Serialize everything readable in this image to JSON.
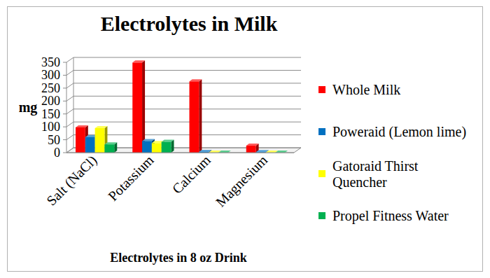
{
  "chart_data": {
    "type": "bar",
    "title": "Electrolytes in Milk",
    "x_label": "Electrolytes in 8 oz Drink",
    "y_label": "mg",
    "categories": [
      "Salt (NaCl)",
      "Potassium",
      "Calcium",
      "Magnesium"
    ],
    "series": [
      {
        "name": "Whole Milk",
        "color": "#ff0000",
        "values": [
          98,
          349,
          276,
          27
        ]
      },
      {
        "name": "Poweraid (Lemon lime)",
        "color": "#0070c0",
        "values": [
          60,
          45,
          3,
          2
        ]
      },
      {
        "name": "Gatoraid Thirst Quencher",
        "color": "#ffff00",
        "values": [
          95,
          37,
          0,
          0
        ]
      },
      {
        "name": "Propel Fitness Water",
        "color": "#00b050",
        "values": [
          32,
          42,
          0,
          0
        ]
      }
    ],
    "ylim": [
      0,
      350
    ],
    "yticks": [
      0,
      50,
      100,
      150,
      200,
      250,
      300,
      350
    ],
    "grid": true,
    "legend": "right"
  }
}
